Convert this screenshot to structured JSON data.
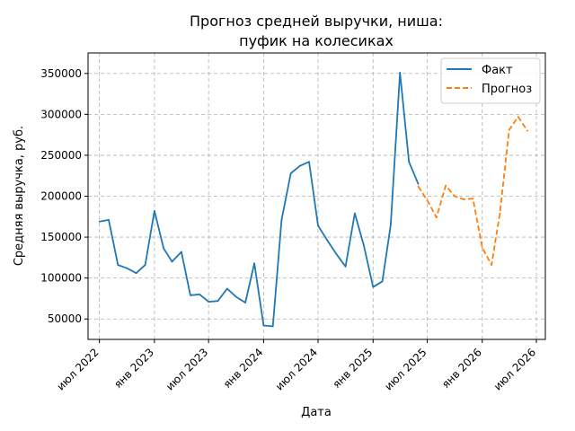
{
  "chart_data": {
    "type": "line",
    "title_lines": [
      "Прогноз средней выручки, ниша:",
      "пуфик на колесиках"
    ],
    "xlabel": "Дата",
    "ylabel": "Средняя выручка, руб.",
    "xlim": [
      "2022-05-24",
      "2026-07-31"
    ],
    "ylim": [
      25000,
      375000
    ],
    "x_ticks": [
      {
        "date": "2022-07-01",
        "label": "июл 2022"
      },
      {
        "date": "2023-01-01",
        "label": "янв 2023"
      },
      {
        "date": "2023-07-01",
        "label": "июл 2023"
      },
      {
        "date": "2024-01-01",
        "label": "янв 2024"
      },
      {
        "date": "2024-07-01",
        "label": "июл 2024"
      },
      {
        "date": "2025-01-01",
        "label": "янв 2025"
      },
      {
        "date": "2025-07-01",
        "label": "июл 2025"
      },
      {
        "date": "2026-01-01",
        "label": "янв 2026"
      },
      {
        "date": "2026-07-01",
        "label": "июл 2026"
      }
    ],
    "y_ticks": [
      {
        "value": 50000,
        "label": "50000"
      },
      {
        "value": 100000,
        "label": "100000"
      },
      {
        "value": 150000,
        "label": "150000"
      },
      {
        "value": 200000,
        "label": "200000"
      },
      {
        "value": 250000,
        "label": "250000"
      },
      {
        "value": 300000,
        "label": "300000"
      },
      {
        "value": 350000,
        "label": "350000"
      }
    ],
    "grid": true,
    "legend_position": "top-right",
    "series": [
      {
        "name": "Факт",
        "color": "#1f77b4",
        "style": "solid",
        "points": [
          [
            "2022-07-01",
            169000
          ],
          [
            "2022-08-01",
            171000
          ],
          [
            "2022-09-01",
            116000
          ],
          [
            "2022-10-01",
            112000
          ],
          [
            "2022-11-01",
            106000
          ],
          [
            "2022-12-01",
            116000
          ],
          [
            "2023-01-01",
            182000
          ],
          [
            "2023-02-01",
            136000
          ],
          [
            "2023-03-01",
            120000
          ],
          [
            "2023-04-01",
            132000
          ],
          [
            "2023-05-01",
            79000
          ],
          [
            "2023-06-01",
            80000
          ],
          [
            "2023-07-01",
            71000
          ],
          [
            "2023-08-01",
            72000
          ],
          [
            "2023-09-01",
            87000
          ],
          [
            "2023-10-01",
            77000
          ],
          [
            "2023-11-01",
            70000
          ],
          [
            "2023-12-01",
            118000
          ],
          [
            "2024-01-01",
            42000
          ],
          [
            "2024-02-01",
            41000
          ],
          [
            "2024-03-01",
            171000
          ],
          [
            "2024-04-01",
            228000
          ],
          [
            "2024-05-01",
            237000
          ],
          [
            "2024-06-01",
            242000
          ],
          [
            "2024-07-01",
            164000
          ],
          [
            "2024-08-01",
            146000
          ],
          [
            "2024-09-01",
            129000
          ],
          [
            "2024-10-01",
            114000
          ],
          [
            "2024-11-01",
            179000
          ],
          [
            "2024-12-01",
            140000
          ],
          [
            "2025-01-01",
            89000
          ],
          [
            "2025-02-01",
            96000
          ],
          [
            "2025-03-01",
            165000
          ],
          [
            "2025-04-01",
            351000
          ],
          [
            "2025-05-01",
            242000
          ],
          [
            "2025-06-01",
            215000
          ]
        ]
      },
      {
        "name": "Прогноз",
        "color": "#ff7f0e",
        "style": "dashed",
        "points": [
          [
            "2025-06-01",
            212000
          ],
          [
            "2025-07-01",
            195000
          ],
          [
            "2025-08-01",
            174000
          ],
          [
            "2025-09-01",
            213000
          ],
          [
            "2025-10-01",
            200000
          ],
          [
            "2025-11-01",
            196000
          ],
          [
            "2025-12-01",
            197000
          ],
          [
            "2026-01-01",
            137000
          ],
          [
            "2026-02-01",
            116000
          ],
          [
            "2026-03-01",
            179000
          ],
          [
            "2026-04-01",
            281000
          ],
          [
            "2026-05-01",
            297000
          ],
          [
            "2026-06-01",
            280000
          ]
        ]
      }
    ]
  }
}
